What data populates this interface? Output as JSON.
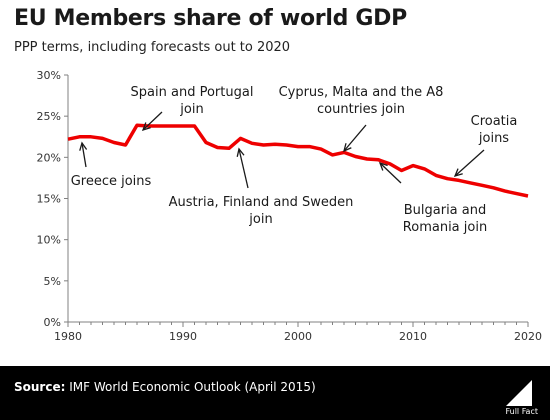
{
  "header": {
    "title": "EU Members share of world GDP",
    "subtitle": "PPP terms, including forecasts out to 2020"
  },
  "footer": {
    "source_label": "Source:",
    "source_text": "IMF World Economic Outlook (April 2015)",
    "brand": "Full Fact"
  },
  "colors": {
    "series": "#ee0000",
    "axis": "#808080",
    "footer_bg": "#000000"
  },
  "chart_data": {
    "type": "line",
    "title": "EU Members share of world GDP",
    "subtitle": "PPP terms, including forecasts out to 2020",
    "xlim": [
      1980,
      2020
    ],
    "ylim": [
      0,
      30
    ],
    "x_ticks": [
      1980,
      1990,
      2000,
      2010,
      2020
    ],
    "x_tick_labels": [
      "1980",
      "1990",
      "2000",
      "2010",
      "2020"
    ],
    "y_ticks": [
      0,
      5,
      10,
      15,
      20,
      25,
      30
    ],
    "y_tick_labels": [
      "0%",
      "5%",
      "10%",
      "15%",
      "20%",
      "25%",
      "30%"
    ],
    "grid": false,
    "legend": "none",
    "series": [
      {
        "x": [
          1980,
          1981,
          1982,
          1983,
          1984,
          1985,
          1986,
          1987,
          1988,
          1989,
          1990,
          1991,
          1992,
          1993,
          1994,
          1995,
          1996,
          1997,
          1998,
          1999,
          2000,
          2001,
          2002,
          2003,
          2004,
          2005,
          2006,
          2007,
          2008,
          2009,
          2010,
          2011,
          2012,
          2013,
          2014,
          2015,
          2016,
          2017,
          2018,
          2019,
          2020
        ],
        "values": [
          22.2,
          22.5,
          22.5,
          22.3,
          21.8,
          21.5,
          23.9,
          23.8,
          23.8,
          23.8,
          23.8,
          23.8,
          21.8,
          21.2,
          21.1,
          22.3,
          21.7,
          21.5,
          21.6,
          21.5,
          21.3,
          21.3,
          21.0,
          20.3,
          20.6,
          20.1,
          19.8,
          19.7,
          19.2,
          18.4,
          19.0,
          18.6,
          17.8,
          17.4,
          17.2,
          16.9,
          16.6,
          16.3,
          15.9,
          15.6,
          15.3
        ]
      }
    ],
    "annotations": [
      {
        "lines": [
          "Greece joins"
        ],
        "year": 1981
      },
      {
        "lines": [
          "Spain and Portugal",
          "join"
        ],
        "year": 1986
      },
      {
        "lines": [
          "Austria, Finland and Sweden",
          "join"
        ],
        "year": 1995
      },
      {
        "lines": [
          "Cyprus, Malta and the A8",
          "countries join"
        ],
        "year": 2004
      },
      {
        "lines": [
          "Bulgaria and",
          "Romania join"
        ],
        "year": 2007
      },
      {
        "lines": [
          "Croatia",
          "joins"
        ],
        "year": 2013
      }
    ]
  }
}
